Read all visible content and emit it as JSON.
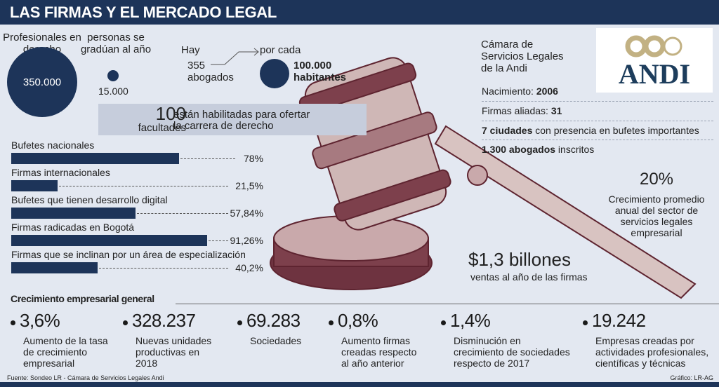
{
  "title": "LAS FIRMAS Y EL MERCADO LEGAL",
  "top": {
    "profesionales_label": "Profesionales en derecho",
    "profesionales_value": "350.000",
    "graduados_label": "personas se gradúan al año",
    "graduados_value": "15.000",
    "hay": "Hay",
    "abogados_value": "355",
    "abogados_label": "abogados",
    "por_cada": "por cada",
    "habitantes_value": "100.000",
    "habitantes_label": "habitantes",
    "facultades_value": "100",
    "facultades_label": "facultades",
    "facultades_desc1": "están habilitadas para ofertar",
    "facultades_desc2": "la carrera de derecho"
  },
  "chart_data": {
    "type": "bar",
    "orientation": "horizontal",
    "categories": [
      "Bufetes nacionales",
      "Firmas internacionales",
      "Bufetes que tienen desarrollo digital",
      "Firmas radicadas en Bogotá",
      "Firmas que se inclinan por un área de especialización"
    ],
    "values": [
      78,
      21.5,
      57.84,
      91.26,
      40.2
    ],
    "labels": [
      "78%",
      "21,5%",
      "57,84%",
      "91,26%",
      "40,2%"
    ],
    "xlim": [
      0,
      100
    ],
    "color": "#1d3459"
  },
  "andi": {
    "heading1": "Cámara de",
    "heading2": "Servicios Legales",
    "heading3": "de la Andi",
    "logo_text": "ANDI",
    "nacimiento_label": "Nacimiento: ",
    "nacimiento_value": "2006",
    "firmas_label": "Firmas aliadas: ",
    "firmas_value": "31",
    "ciudades_bold": "7 ciudades",
    "ciudades_rest": " con presencia en bufetes importantes",
    "abogados_bold": "1.300 abogados",
    "abogados_rest": " inscritos"
  },
  "growth": {
    "value": "20%",
    "l1": "Crecimiento promedio",
    "l2": "anual del sector de",
    "l3": "servicios legales",
    "l4": "empresarial"
  },
  "sales": {
    "value": "$1,3 billones",
    "label": "ventas al año de las firmas"
  },
  "section_title": "Crecimiento empresarial general",
  "stats": [
    {
      "value": "3,6%",
      "l1": "Aumento de la tasa",
      "l2": "de crecimiento",
      "l3": "empresarial"
    },
    {
      "value": "328.237",
      "l1": "Nuevas unidades",
      "l2": "productivas en",
      "l3": "2018"
    },
    {
      "value": "69.283",
      "l1": "Sociedades",
      "l2": "",
      "l3": ""
    },
    {
      "value": "0,8%",
      "l1": "Aumento firmas",
      "l2": "creadas respecto",
      "l3": "al año anterior"
    },
    {
      "value": "1,4%",
      "l1": "Disminución en",
      "l2": "crecimiento de sociedades",
      "l3": "respecto de 2017"
    },
    {
      "value": "19.242",
      "l1": "Empresas creadas por",
      "l2": "actividades profesionales,",
      "l3": "científicas y técnicas"
    }
  ],
  "footer": {
    "source": "Fuente: Sondeo LR - Cámara de Servicios Legales Andi",
    "credit": "Gráfico: LR-AG"
  },
  "colors": {
    "navy": "#1d3459",
    "maroon": "#5e2430",
    "gold": "#c2b183",
    "background": "#e3e8f1"
  }
}
